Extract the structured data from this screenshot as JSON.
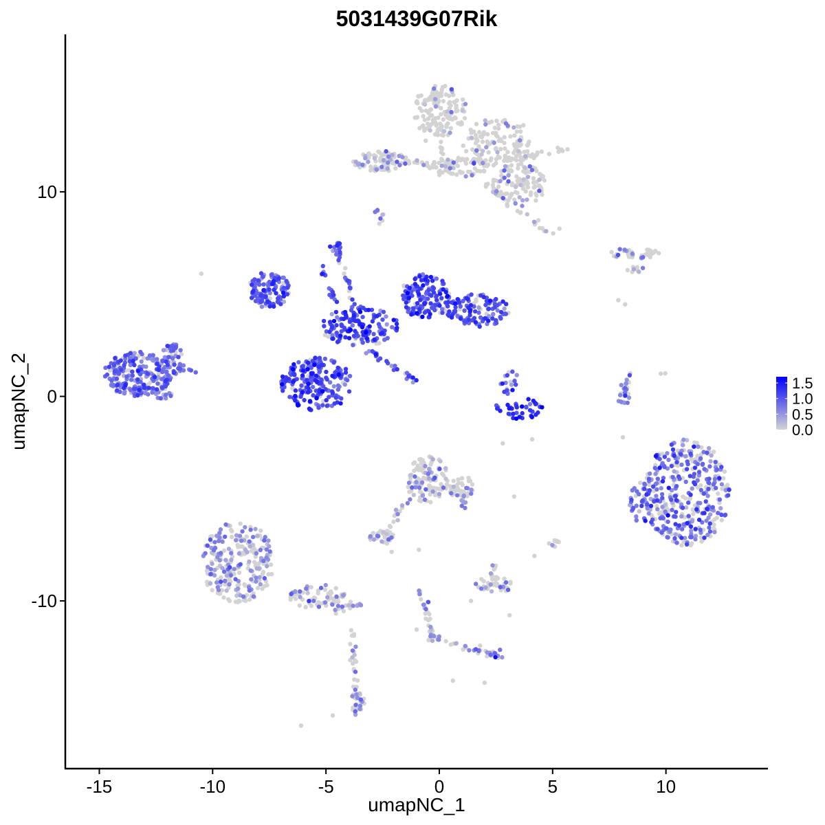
{
  "chart_data": {
    "type": "scatter",
    "title": "5031439G07Rik",
    "xlabel": "umapNC_1",
    "ylabel": "umapNC_2",
    "xlim": [
      -16.5,
      14.5
    ],
    "ylim": [
      -18.2,
      17.7
    ],
    "x_ticks": [
      -15,
      -10,
      -5,
      0,
      5,
      10
    ],
    "x_tick_labels": [
      "-15",
      "-10",
      "-5",
      "0",
      "5",
      "10"
    ],
    "y_ticks": [
      -10,
      0,
      10
    ],
    "y_tick_labels": [
      "-10",
      "0",
      "10"
    ],
    "grid": false,
    "legend": {
      "position": "right",
      "title": "",
      "ticks": [
        1.5,
        1.0,
        0.5,
        0.0
      ],
      "tick_labels": [
        "1.5",
        "1.0",
        "0.5",
        "0.0"
      ],
      "range": [
        0.0,
        1.7
      ],
      "color_low": "#d3d3d3",
      "color_high": "#0000ff"
    },
    "clusters": [
      {
        "cx": 0.0,
        "cy": 14.0,
        "rx": 1.2,
        "ry": 1.3,
        "n": 140,
        "expr": 0.35,
        "frac": 0.12
      },
      {
        "cx": 2.6,
        "cy": 12.4,
        "rx": 1.6,
        "ry": 1.2,
        "n": 130,
        "expr": 0.4,
        "frac": 0.14
      },
      {
        "cx": 3.5,
        "cy": 10.3,
        "rx": 1.2,
        "ry": 1.1,
        "n": 110,
        "expr": 0.45,
        "frac": 0.16
      },
      {
        "cx": -2.6,
        "cy": 11.5,
        "rx": 1.3,
        "ry": 0.5,
        "n": 80,
        "expr": 0.5,
        "frac": 0.22
      },
      {
        "cx": 0.8,
        "cy": 11.2,
        "rx": 1.3,
        "ry": 0.5,
        "n": 60,
        "expr": 0.4,
        "frac": 0.12
      },
      {
        "cx": -2.7,
        "cy": 8.8,
        "rx": 0.25,
        "ry": 0.4,
        "n": 8,
        "expr": 0.6,
        "frac": 0.6
      },
      {
        "cx": 8.6,
        "cy": 7.0,
        "rx": 1.3,
        "ry": 0.3,
        "n": 40,
        "expr": 0.6,
        "frac": 0.35
      },
      {
        "cx": 8.7,
        "cy": 6.2,
        "rx": 0.4,
        "ry": 0.2,
        "n": 8,
        "expr": 0.5,
        "frac": 0.4
      },
      {
        "cx": -13.3,
        "cy": 1.1,
        "rx": 1.5,
        "ry": 1.1,
        "n": 230,
        "expr": 0.75,
        "frac": 0.85
      },
      {
        "cx": -11.8,
        "cy": 1.8,
        "rx": 0.5,
        "ry": 0.8,
        "n": 40,
        "expr": 0.8,
        "frac": 0.8
      },
      {
        "cx": -12.2,
        "cy": 0.1,
        "rx": 0.4,
        "ry": 0.3,
        "n": 15,
        "expr": 0.8,
        "frac": 0.8
      },
      {
        "cx": -7.5,
        "cy": 5.2,
        "rx": 0.9,
        "ry": 0.9,
        "n": 120,
        "expr": 1.0,
        "frac": 0.9
      },
      {
        "cx": -5.4,
        "cy": 0.6,
        "rx": 1.6,
        "ry": 1.3,
        "n": 220,
        "expr": 1.1,
        "frac": 0.92
      },
      {
        "cx": -3.5,
        "cy": 3.4,
        "rx": 1.7,
        "ry": 1.0,
        "n": 150,
        "expr": 1.1,
        "frac": 0.9
      },
      {
        "cx": -0.6,
        "cy": 4.9,
        "rx": 1.1,
        "ry": 1.1,
        "n": 150,
        "expr": 1.05,
        "frac": 0.9
      },
      {
        "cx": 1.7,
        "cy": 4.2,
        "rx": 1.4,
        "ry": 0.8,
        "n": 120,
        "expr": 1.05,
        "frac": 0.9
      },
      {
        "cx": -4.6,
        "cy": 7.3,
        "rx": 0.25,
        "ry": 0.3,
        "n": 10,
        "expr": 1.0,
        "frac": 0.9
      },
      {
        "cx": 3.5,
        "cy": -0.6,
        "rx": 1.2,
        "ry": 0.5,
        "n": 40,
        "expr": 1.2,
        "frac": 0.9
      },
      {
        "cx": 3.1,
        "cy": 0.7,
        "rx": 0.4,
        "ry": 0.6,
        "n": 20,
        "expr": 1.0,
        "frac": 0.8
      },
      {
        "cx": 8.2,
        "cy": 0.3,
        "rx": 0.3,
        "ry": 0.7,
        "n": 12,
        "expr": 0.7,
        "frac": 0.6
      },
      {
        "cx": 10.9,
        "cy": -4.7,
        "rx": 1.9,
        "ry": 2.6,
        "n": 400,
        "expr": 0.8,
        "frac": 0.65
      },
      {
        "cx": 8.9,
        "cy": -5.2,
        "rx": 0.5,
        "ry": 1.1,
        "n": 40,
        "expr": 0.7,
        "frac": 0.7
      },
      {
        "cx": -8.9,
        "cy": -8.1,
        "rx": 1.6,
        "ry": 2.0,
        "n": 260,
        "expr": 0.55,
        "frac": 0.45
      },
      {
        "cx": -5.3,
        "cy": -9.8,
        "rx": 1.3,
        "ry": 0.6,
        "n": 70,
        "expr": 0.5,
        "frac": 0.3
      },
      {
        "cx": -3.6,
        "cy": -15.0,
        "rx": 0.3,
        "ry": 0.6,
        "n": 25,
        "expr": 0.6,
        "frac": 0.4
      },
      {
        "cx": -0.5,
        "cy": -4.0,
        "rx": 0.9,
        "ry": 1.2,
        "n": 110,
        "expr": 0.5,
        "frac": 0.3
      },
      {
        "cx": 1.0,
        "cy": -4.5,
        "rx": 0.6,
        "ry": 0.6,
        "n": 40,
        "expr": 0.5,
        "frac": 0.3
      },
      {
        "cx": -2.5,
        "cy": -6.9,
        "rx": 0.6,
        "ry": 0.35,
        "n": 30,
        "expr": 0.6,
        "frac": 0.4
      },
      {
        "cx": 2.4,
        "cy": -9.2,
        "rx": 0.8,
        "ry": 0.45,
        "n": 45,
        "expr": 0.6,
        "frac": 0.35
      },
      {
        "cx": 5.0,
        "cy": -7.2,
        "rx": 0.3,
        "ry": 0.2,
        "n": 10,
        "expr": 0.5,
        "frac": 0.3
      },
      {
        "cx": 2.5,
        "cy": -12.6,
        "rx": 0.4,
        "ry": 0.25,
        "n": 10,
        "expr": 0.7,
        "frac": 0.5
      },
      {
        "cx": -0.3,
        "cy": -11.7,
        "rx": 0.3,
        "ry": 0.3,
        "n": 10,
        "expr": 0.6,
        "frac": 0.4
      }
    ],
    "filaments": [
      {
        "from": [
          -4.5,
          7.5
        ],
        "to": [
          -3.6,
          3.4
        ],
        "n": 30,
        "expr": 1.0,
        "frac": 0.85
      },
      {
        "from": [
          -3.2,
          2.3
        ],
        "to": [
          -1.1,
          0.8
        ],
        "n": 25,
        "expr": 1.0,
        "frac": 0.85
      },
      {
        "from": [
          -5.2,
          6.4
        ],
        "to": [
          -4.5,
          4.5
        ],
        "n": 15,
        "expr": 1.0,
        "frac": 0.85
      },
      {
        "from": [
          -12.0,
          2.7
        ],
        "to": [
          -11.4,
          1.2
        ],
        "n": 12,
        "expr": 0.8,
        "frac": 0.85
      },
      {
        "from": [
          -11.6,
          1.4
        ],
        "to": [
          -10.6,
          1.3
        ],
        "n": 8,
        "expr": 0.7,
        "frac": 0.8
      },
      {
        "from": [
          -2.8,
          11.6
        ],
        "to": [
          0.4,
          11.2
        ],
        "n": 30,
        "expr": 0.4,
        "frac": 0.2
      },
      {
        "from": [
          3.4,
          11.6
        ],
        "to": [
          5.6,
          12.1
        ],
        "n": 20,
        "expr": 0.4,
        "frac": 0.2
      },
      {
        "from": [
          1.6,
          10.7
        ],
        "to": [
          4.8,
          8.0
        ],
        "n": 25,
        "expr": 0.4,
        "frac": 0.2
      },
      {
        "from": [
          0.5,
          11.0
        ],
        "to": [
          -0.3,
          13.0
        ],
        "n": 15,
        "expr": 0.3,
        "frac": 0.15
      },
      {
        "from": [
          8.4,
          1.2
        ],
        "to": [
          8.0,
          -0.4
        ],
        "n": 15,
        "expr": 0.7,
        "frac": 0.5
      },
      {
        "from": [
          -4.7,
          -10.4
        ],
        "to": [
          -3.4,
          -10.2
        ],
        "n": 20,
        "expr": 0.5,
        "frac": 0.3
      },
      {
        "from": [
          -3.9,
          -11.0
        ],
        "to": [
          -3.6,
          -15.4
        ],
        "n": 30,
        "expr": 0.5,
        "frac": 0.3
      },
      {
        "from": [
          -1.2,
          -4.4
        ],
        "to": [
          -2.3,
          -6.8
        ],
        "n": 20,
        "expr": 0.6,
        "frac": 0.45
      },
      {
        "from": [
          0.9,
          -4.3
        ],
        "to": [
          1.2,
          -5.5
        ],
        "n": 15,
        "expr": 0.6,
        "frac": 0.35
      },
      {
        "from": [
          -0.9,
          -9.3
        ],
        "to": [
          -0.3,
          -11.6
        ],
        "n": 25,
        "expr": 0.5,
        "frac": 0.3
      },
      {
        "from": [
          -0.3,
          -11.8
        ],
        "to": [
          2.5,
          -12.6
        ],
        "n": 25,
        "expr": 0.6,
        "frac": 0.4
      },
      {
        "from": [
          2.3,
          -8.8
        ],
        "to": [
          2.5,
          -8.2
        ],
        "n": 8,
        "expr": 0.5,
        "frac": 0.3
      },
      {
        "from": [
          9.7,
          1.0
        ],
        "to": [
          10.0,
          1.1
        ],
        "n": 2,
        "expr": 0.0,
        "frac": 0.0
      }
    ],
    "singletons": [
      [
        -10.5,
        6.0
      ],
      [
        -6.1,
        -16.1
      ],
      [
        -4.7,
        -15.6
      ],
      [
        4.1,
        -2.1
      ],
      [
        2.8,
        -2.3
      ],
      [
        8.1,
        -2.0
      ],
      [
        2.0,
        -14.0
      ],
      [
        0.6,
        -13.9
      ],
      [
        -1.0,
        -11.4
      ],
      [
        3.1,
        -10.7
      ],
      [
        -2.1,
        -7.6
      ],
      [
        -0.9,
        -7.5
      ],
      [
        1.4,
        -10.0
      ],
      [
        3.3,
        -4.9
      ],
      [
        7.9,
        4.7
      ],
      [
        8.2,
        4.5
      ],
      [
        4.2,
        -7.8
      ],
      [
        3.2,
        9.9
      ],
      [
        5.3,
        8.2
      ],
      [
        -0.6,
        12.5
      ]
    ]
  }
}
